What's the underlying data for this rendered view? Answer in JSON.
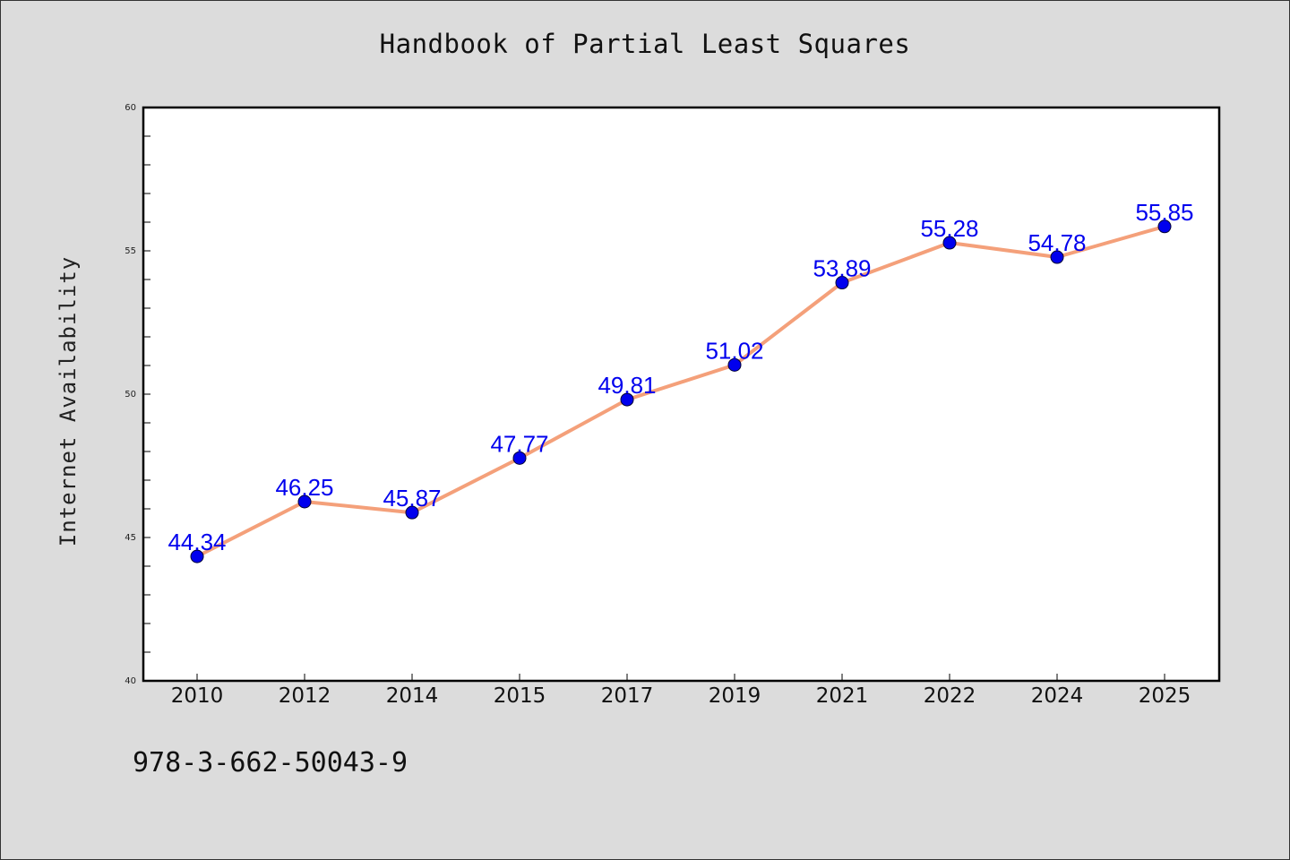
{
  "title": "Handbook of Partial Least Squares",
  "isbn": "978-3-662-50043-9",
  "chart_data": {
    "type": "line",
    "title": "Handbook of Partial Least Squares",
    "xlabel": "",
    "ylabel": "Internet Availability",
    "categories": [
      "2010",
      "2012",
      "2014",
      "2015",
      "2017",
      "2019",
      "2021",
      "2022",
      "2024",
      "2025"
    ],
    "series": [
      {
        "values": [
          44.34,
          46.25,
          45.87,
          47.77,
          49.81,
          51.02,
          53.89,
          55.28,
          54.78,
          55.85
        ],
        "labels": [
          "44.34",
          "46.25",
          "45.87",
          "47.77",
          "49.81",
          "51.02",
          "53.89",
          "55.28",
          "54.78",
          "55.85"
        ]
      }
    ],
    "ylim": [
      40,
      60
    ],
    "yticks": [
      40,
      45,
      50,
      55,
      60
    ],
    "grid": false,
    "colors": {
      "line": "#f4a07a",
      "marker": "#0000ee",
      "label": "#0000ee",
      "plot_bg": "#ffffff",
      "page_bg": "#dcdcdc"
    }
  }
}
